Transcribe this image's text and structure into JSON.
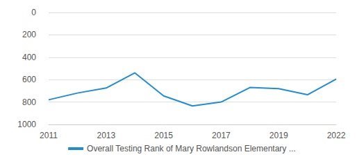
{
  "chart_data": {
    "type": "line",
    "categories": [
      "2011",
      null,
      "2013",
      null,
      "2015",
      null,
      "2017",
      null,
      "2019",
      null,
      "2022"
    ],
    "series": [
      {
        "name": "Overall Testing Rank of Mary Rowlandson Elementary ...",
        "color": "#1f8dd6",
        "values": [
          780,
          720,
          675,
          540,
          745,
          835,
          800,
          670,
          680,
          735,
          595
        ]
      }
    ],
    "ylim": [
      1000,
      0
    ],
    "yticks": [
      0,
      200,
      400,
      600,
      800,
      1000
    ],
    "grid": true,
    "legend": "bottom"
  }
}
